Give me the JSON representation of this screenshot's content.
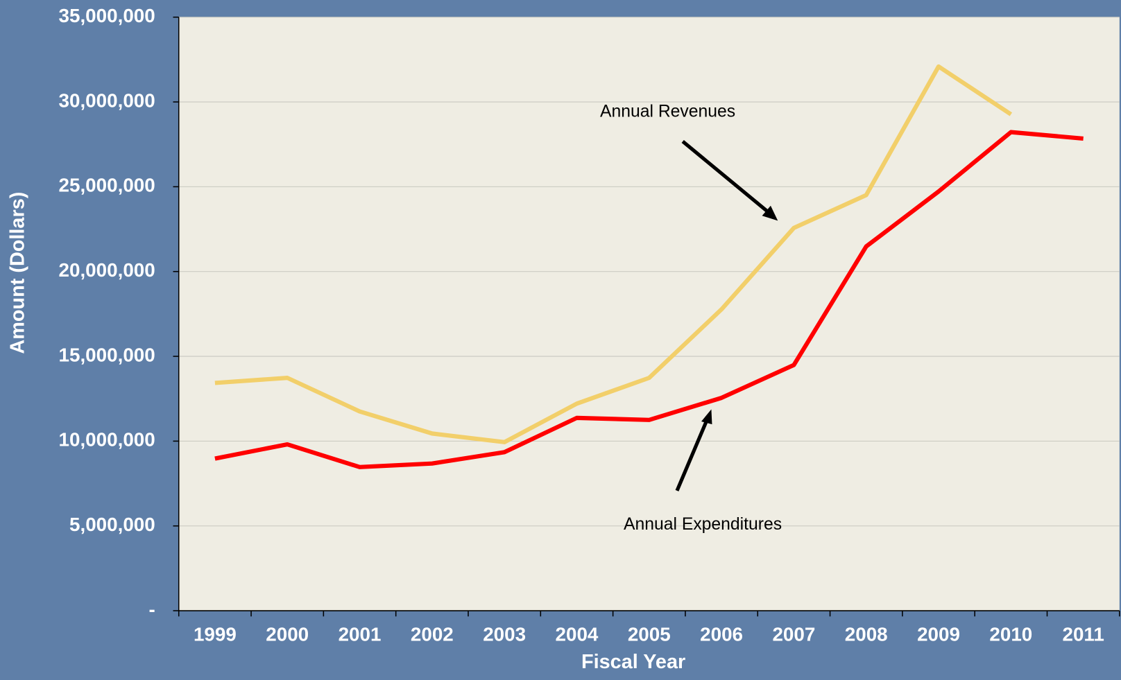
{
  "chart_data": {
    "type": "line",
    "x_label": "Fiscal Year",
    "y_label": "Amount (Dollars)",
    "categories": [
      "1999",
      "2000",
      "2001",
      "2002",
      "2003",
      "2004",
      "2005",
      "2006",
      "2007",
      "2008",
      "2009",
      "2010",
      "2011"
    ],
    "series": [
      {
        "name": "Annual Revenues",
        "color": "#f2cf6a",
        "values": [
          13430000,
          13730000,
          11750000,
          10450000,
          9940000,
          12210000,
          13730000,
          17770000,
          22570000,
          24510000,
          32090000,
          29270000,
          null
        ]
      },
      {
        "name": "Annual Expenditures",
        "color": "#ff0000",
        "values": [
          8970000,
          9810000,
          8470000,
          8680000,
          9350000,
          11370000,
          11250000,
          12550000,
          14490000,
          21480000,
          24720000,
          28220000,
          27840000
        ]
      }
    ],
    "ylim": [
      0,
      35000000
    ],
    "yticks": [
      {
        "value": 0,
        "label": "-"
      },
      {
        "value": 5000000,
        "label": "5,000,000"
      },
      {
        "value": 10000000,
        "label": "10,000,000"
      },
      {
        "value": 15000000,
        "label": "15,000,000"
      },
      {
        "value": 20000000,
        "label": "20,000,000"
      },
      {
        "value": 25000000,
        "label": "25,000,000"
      },
      {
        "value": 30000000,
        "label": "30,000,000"
      },
      {
        "value": 35000000,
        "label": "35,000,000"
      }
    ],
    "grid": true
  }
}
